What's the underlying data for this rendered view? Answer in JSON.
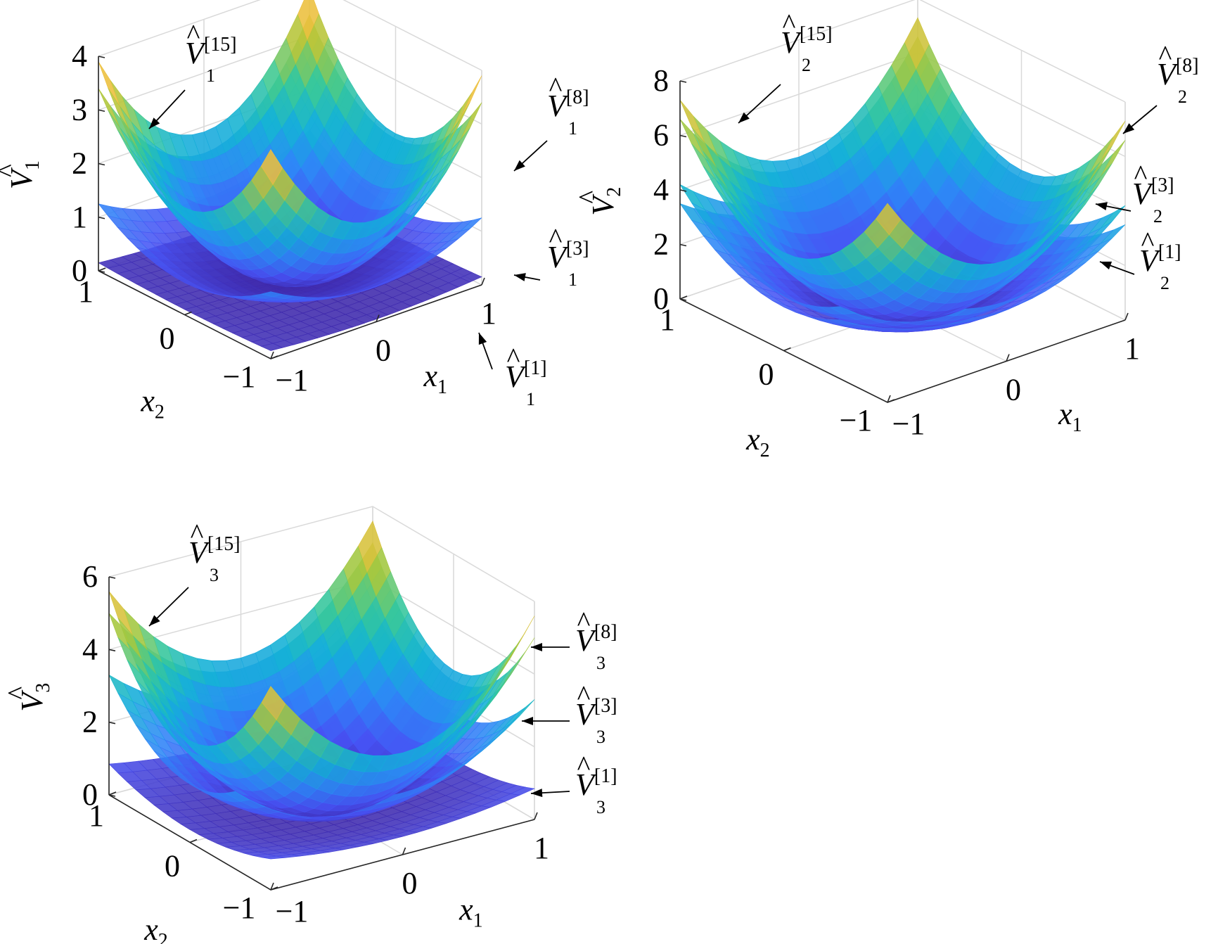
{
  "chart_data": [
    {
      "type": "surface",
      "zlabel": "V",
      "zlabel_sub": "1",
      "xlabel": "x",
      "xlabel_sub": "1",
      "ylabel": "x",
      "ylabel_sub": "2",
      "xlim": [
        -1,
        1
      ],
      "ylim": [
        -1,
        1
      ],
      "zlim": [
        0,
        4
      ],
      "x_ticks": [
        "−1",
        "0",
        "1"
      ],
      "y_ticks": [
        "−1",
        "0",
        "1"
      ],
      "z_ticks": [
        "0",
        "1",
        "2",
        "3",
        "4"
      ],
      "grid": true,
      "colormap": "parula",
      "series": [
        {
          "iter": "1",
          "label": "V",
          "label_sub": "1",
          "label_sup": "[1]",
          "a": 0.1,
          "b": 0.05,
          "c": 0.0,
          "corner_values": {
            "x1=-1,x2=-1": 0.07,
            "x1=1,x2=1": 0.1
          }
        },
        {
          "iter": "3",
          "label": "V",
          "label_sub": "1",
          "label_sup": "[3]",
          "a": 0.6,
          "b": 0.65,
          "c": 0.0,
          "corner_values": {
            "x1=-1,x2=1": 1.25,
            "x1=1,x2=1": 0.8
          }
        },
        {
          "iter": "8",
          "label": "V",
          "label_sub": "1",
          "label_sup": "[8]",
          "a": 1.9,
          "b": 1.5,
          "c": 0.0,
          "corner_values": {
            "x1=-1,x2=1": 3.6,
            "x1=1,x2=1": 3.4
          }
        },
        {
          "iter": "15",
          "label": "V",
          "label_sub": "1",
          "label_sup": "[15]",
          "a": 2.0,
          "b": 1.9,
          "c": 0.0,
          "corner_values": {
            "x1=-1,x2=1": 3.9,
            "x1=1,x2=1": 3.4
          }
        }
      ]
    },
    {
      "type": "surface",
      "zlabel": "V",
      "zlabel_sub": "2",
      "xlabel": "x",
      "xlabel_sub": "1",
      "ylabel": "x",
      "ylabel_sub": "2",
      "xlim": [
        -1,
        1
      ],
      "ylim": [
        -1,
        1
      ],
      "zlim": [
        0,
        8
      ],
      "x_ticks": [
        "−1",
        "0",
        "1"
      ],
      "y_ticks": [
        "−1",
        "0",
        "1"
      ],
      "z_ticks": [
        "0",
        "2",
        "4",
        "6",
        "8"
      ],
      "grid": true,
      "colormap": "parula",
      "series": [
        {
          "iter": "1",
          "label": "V",
          "label_sub": "2",
          "label_sup": "[1]",
          "a": 1.6,
          "b": 1.9,
          "c": 0.0,
          "corner_values": {
            "x1=-1,x2=1": 3.5,
            "x1=1,x2=1": 2.8
          }
        },
        {
          "iter": "3",
          "label": "V",
          "label_sub": "2",
          "label_sup": "[3]",
          "a": 2.0,
          "b": 2.2,
          "c": 0.0,
          "corner_values": {
            "x1=-1,x2=1": 4.2,
            "x1=1,x2=1": 3.4
          }
        },
        {
          "iter": "8",
          "label": "V",
          "label_sub": "2",
          "label_sup": "[8]",
          "a": 3.3,
          "b": 3.3,
          "c": 0.0,
          "corner_values": {
            "x1=-1,x2=1": 6.6,
            "x1=1,x2=1": 6.5
          }
        },
        {
          "iter": "15",
          "label": "V",
          "label_sub": "2",
          "label_sup": "[15]",
          "a": 3.6,
          "b": 3.7,
          "c": 0.0,
          "corner_values": {
            "x1=-1,x2=1": 7.3,
            "x1=1,x2=1": 6.5
          }
        }
      ]
    },
    {
      "type": "surface",
      "zlabel": "V",
      "zlabel_sub": "3",
      "xlabel": "x",
      "xlabel_sub": "1",
      "ylabel": "x",
      "ylabel_sub": "2",
      "xlim": [
        -1,
        1
      ],
      "ylim": [
        -1,
        1
      ],
      "zlim": [
        0,
        6
      ],
      "x_ticks": [
        "−1",
        "0",
        "1"
      ],
      "y_ticks": [
        "−1",
        "0",
        "1"
      ],
      "z_ticks": [
        "0",
        "2",
        "4",
        "6"
      ],
      "grid": true,
      "colormap": "parula",
      "series": [
        {
          "iter": "1",
          "label": "V",
          "label_sub": "3",
          "label_sup": "[1]",
          "a": 0.35,
          "b": 0.5,
          "c": 0.0,
          "corner_values": {
            "x1=-1,x2=1": 0.9,
            "x1=1,x2=1": 0.3
          }
        },
        {
          "iter": "3",
          "label": "V",
          "label_sub": "3",
          "label_sup": "[3]",
          "a": 1.6,
          "b": 1.7,
          "c": 0.0,
          "corner_values": {
            "x1=-1,x2=1": 3.3,
            "x1=1,x2=1": 2.7
          }
        },
        {
          "iter": "8",
          "label": "V",
          "label_sub": "3",
          "label_sup": "[8]",
          "a": 2.5,
          "b": 2.5,
          "c": 0.0,
          "corner_values": {
            "x1=-1,x2=1": 5.0,
            "x1=1,x2=1": 5.0
          }
        },
        {
          "iter": "15",
          "label": "V",
          "label_sub": "3",
          "label_sup": "[15]",
          "a": 2.8,
          "b": 2.8,
          "c": 0.0,
          "corner_values": {
            "x1=-1,x2=1": 5.6,
            "x1=1,x2=1": 5.0
          }
        }
      ]
    }
  ]
}
